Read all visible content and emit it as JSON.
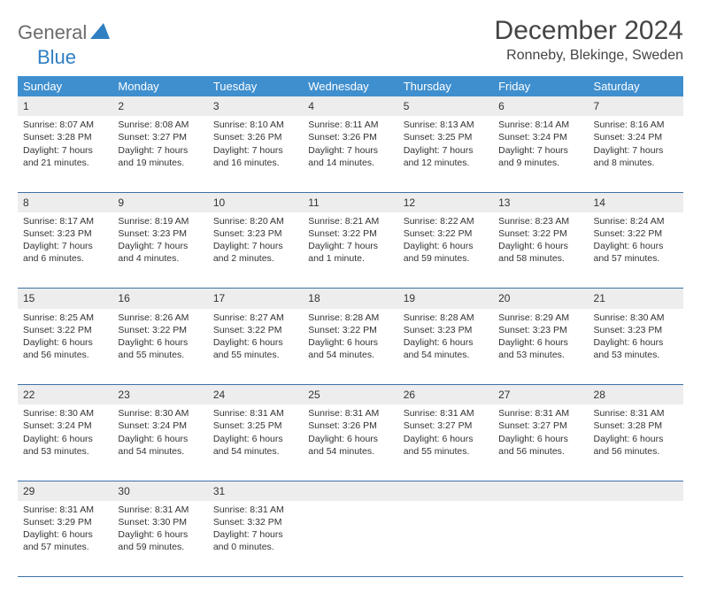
{
  "logo": {
    "part1": "General",
    "part2": "Blue"
  },
  "title": "December 2024",
  "location": "Ronneby, Blekinge, Sweden",
  "dayHeaders": [
    "Sunday",
    "Monday",
    "Tuesday",
    "Wednesday",
    "Thursday",
    "Friday",
    "Saturday"
  ],
  "colors": {
    "headerBg": "#3f8fcf",
    "headerText": "#ffffff",
    "dayNumBg": "#ededed",
    "rowDivider": "#3b72a5",
    "logoGray": "#6b6b6b",
    "logoBlue": "#2f7fc2",
    "textColor": "#333333"
  },
  "weeks": [
    [
      {
        "n": "1",
        "sr": "Sunrise: 8:07 AM",
        "ss": "Sunset: 3:28 PM",
        "d1": "Daylight: 7 hours",
        "d2": "and 21 minutes."
      },
      {
        "n": "2",
        "sr": "Sunrise: 8:08 AM",
        "ss": "Sunset: 3:27 PM",
        "d1": "Daylight: 7 hours",
        "d2": "and 19 minutes."
      },
      {
        "n": "3",
        "sr": "Sunrise: 8:10 AM",
        "ss": "Sunset: 3:26 PM",
        "d1": "Daylight: 7 hours",
        "d2": "and 16 minutes."
      },
      {
        "n": "4",
        "sr": "Sunrise: 8:11 AM",
        "ss": "Sunset: 3:26 PM",
        "d1": "Daylight: 7 hours",
        "d2": "and 14 minutes."
      },
      {
        "n": "5",
        "sr": "Sunrise: 8:13 AM",
        "ss": "Sunset: 3:25 PM",
        "d1": "Daylight: 7 hours",
        "d2": "and 12 minutes."
      },
      {
        "n": "6",
        "sr": "Sunrise: 8:14 AM",
        "ss": "Sunset: 3:24 PM",
        "d1": "Daylight: 7 hours",
        "d2": "and 9 minutes."
      },
      {
        "n": "7",
        "sr": "Sunrise: 8:16 AM",
        "ss": "Sunset: 3:24 PM",
        "d1": "Daylight: 7 hours",
        "d2": "and 8 minutes."
      }
    ],
    [
      {
        "n": "8",
        "sr": "Sunrise: 8:17 AM",
        "ss": "Sunset: 3:23 PM",
        "d1": "Daylight: 7 hours",
        "d2": "and 6 minutes."
      },
      {
        "n": "9",
        "sr": "Sunrise: 8:19 AM",
        "ss": "Sunset: 3:23 PM",
        "d1": "Daylight: 7 hours",
        "d2": "and 4 minutes."
      },
      {
        "n": "10",
        "sr": "Sunrise: 8:20 AM",
        "ss": "Sunset: 3:23 PM",
        "d1": "Daylight: 7 hours",
        "d2": "and 2 minutes."
      },
      {
        "n": "11",
        "sr": "Sunrise: 8:21 AM",
        "ss": "Sunset: 3:22 PM",
        "d1": "Daylight: 7 hours",
        "d2": "and 1 minute."
      },
      {
        "n": "12",
        "sr": "Sunrise: 8:22 AM",
        "ss": "Sunset: 3:22 PM",
        "d1": "Daylight: 6 hours",
        "d2": "and 59 minutes."
      },
      {
        "n": "13",
        "sr": "Sunrise: 8:23 AM",
        "ss": "Sunset: 3:22 PM",
        "d1": "Daylight: 6 hours",
        "d2": "and 58 minutes."
      },
      {
        "n": "14",
        "sr": "Sunrise: 8:24 AM",
        "ss": "Sunset: 3:22 PM",
        "d1": "Daylight: 6 hours",
        "d2": "and 57 minutes."
      }
    ],
    [
      {
        "n": "15",
        "sr": "Sunrise: 8:25 AM",
        "ss": "Sunset: 3:22 PM",
        "d1": "Daylight: 6 hours",
        "d2": "and 56 minutes."
      },
      {
        "n": "16",
        "sr": "Sunrise: 8:26 AM",
        "ss": "Sunset: 3:22 PM",
        "d1": "Daylight: 6 hours",
        "d2": "and 55 minutes."
      },
      {
        "n": "17",
        "sr": "Sunrise: 8:27 AM",
        "ss": "Sunset: 3:22 PM",
        "d1": "Daylight: 6 hours",
        "d2": "and 55 minutes."
      },
      {
        "n": "18",
        "sr": "Sunrise: 8:28 AM",
        "ss": "Sunset: 3:22 PM",
        "d1": "Daylight: 6 hours",
        "d2": "and 54 minutes."
      },
      {
        "n": "19",
        "sr": "Sunrise: 8:28 AM",
        "ss": "Sunset: 3:23 PM",
        "d1": "Daylight: 6 hours",
        "d2": "and 54 minutes."
      },
      {
        "n": "20",
        "sr": "Sunrise: 8:29 AM",
        "ss": "Sunset: 3:23 PM",
        "d1": "Daylight: 6 hours",
        "d2": "and 53 minutes."
      },
      {
        "n": "21",
        "sr": "Sunrise: 8:30 AM",
        "ss": "Sunset: 3:23 PM",
        "d1": "Daylight: 6 hours",
        "d2": "and 53 minutes."
      }
    ],
    [
      {
        "n": "22",
        "sr": "Sunrise: 8:30 AM",
        "ss": "Sunset: 3:24 PM",
        "d1": "Daylight: 6 hours",
        "d2": "and 53 minutes."
      },
      {
        "n": "23",
        "sr": "Sunrise: 8:30 AM",
        "ss": "Sunset: 3:24 PM",
        "d1": "Daylight: 6 hours",
        "d2": "and 54 minutes."
      },
      {
        "n": "24",
        "sr": "Sunrise: 8:31 AM",
        "ss": "Sunset: 3:25 PM",
        "d1": "Daylight: 6 hours",
        "d2": "and 54 minutes."
      },
      {
        "n": "25",
        "sr": "Sunrise: 8:31 AM",
        "ss": "Sunset: 3:26 PM",
        "d1": "Daylight: 6 hours",
        "d2": "and 54 minutes."
      },
      {
        "n": "26",
        "sr": "Sunrise: 8:31 AM",
        "ss": "Sunset: 3:27 PM",
        "d1": "Daylight: 6 hours",
        "d2": "and 55 minutes."
      },
      {
        "n": "27",
        "sr": "Sunrise: 8:31 AM",
        "ss": "Sunset: 3:27 PM",
        "d1": "Daylight: 6 hours",
        "d2": "and 56 minutes."
      },
      {
        "n": "28",
        "sr": "Sunrise: 8:31 AM",
        "ss": "Sunset: 3:28 PM",
        "d1": "Daylight: 6 hours",
        "d2": "and 56 minutes."
      }
    ],
    [
      {
        "n": "29",
        "sr": "Sunrise: 8:31 AM",
        "ss": "Sunset: 3:29 PM",
        "d1": "Daylight: 6 hours",
        "d2": "and 57 minutes."
      },
      {
        "n": "30",
        "sr": "Sunrise: 8:31 AM",
        "ss": "Sunset: 3:30 PM",
        "d1": "Daylight: 6 hours",
        "d2": "and 59 minutes."
      },
      {
        "n": "31",
        "sr": "Sunrise: 8:31 AM",
        "ss": "Sunset: 3:32 PM",
        "d1": "Daylight: 7 hours",
        "d2": "and 0 minutes."
      },
      null,
      null,
      null,
      null
    ]
  ]
}
